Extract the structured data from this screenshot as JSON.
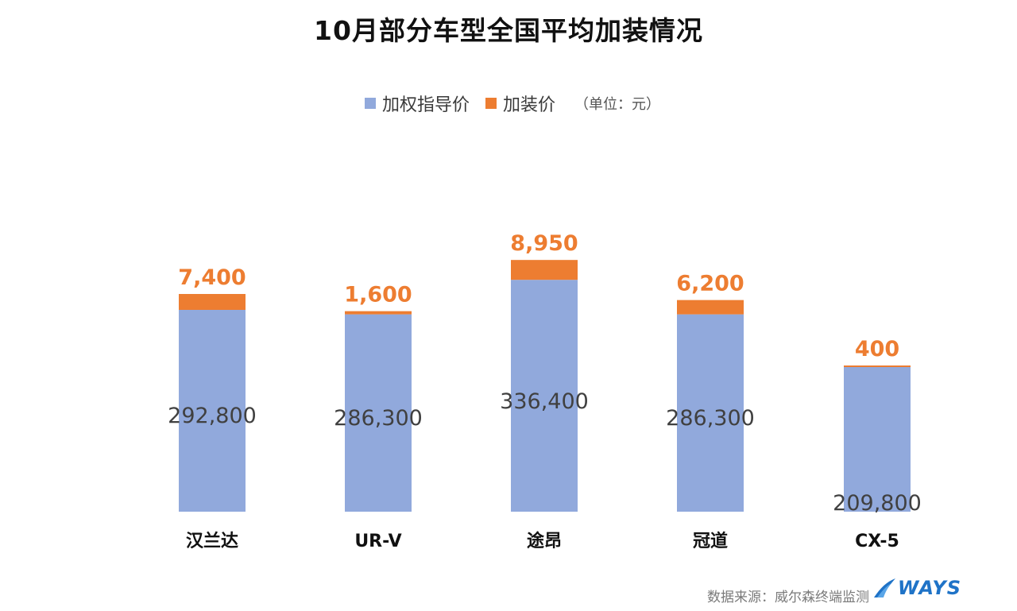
{
  "chart_data": {
    "type": "bar",
    "stacked": true,
    "title": "10月部分车型全国平均加装情况",
    "unit_note": "（单位：元）",
    "categories": [
      "汉兰达",
      "UR-V",
      "途昂",
      "冠道",
      "CX-5"
    ],
    "series": [
      {
        "name": "加权指导价",
        "color": "#91a9dc",
        "values": [
          292800,
          286300,
          336400,
          286300,
          209800
        ]
      },
      {
        "name": "加装价",
        "color": "#ed7d31",
        "values": [
          7400,
          1600,
          8950,
          6200,
          400
        ]
      }
    ],
    "value_labels": {
      "base": [
        "292,800",
        "286,300",
        "336,400",
        "286,300",
        "209,800"
      ],
      "top": [
        "7,400",
        "1,600",
        "8,950",
        "6,200",
        "400"
      ]
    },
    "legend_position": "top-center",
    "grid": false
  },
  "footer": {
    "source": "数据来源：威尔森终端监测",
    "logo_text": "WAYS"
  }
}
